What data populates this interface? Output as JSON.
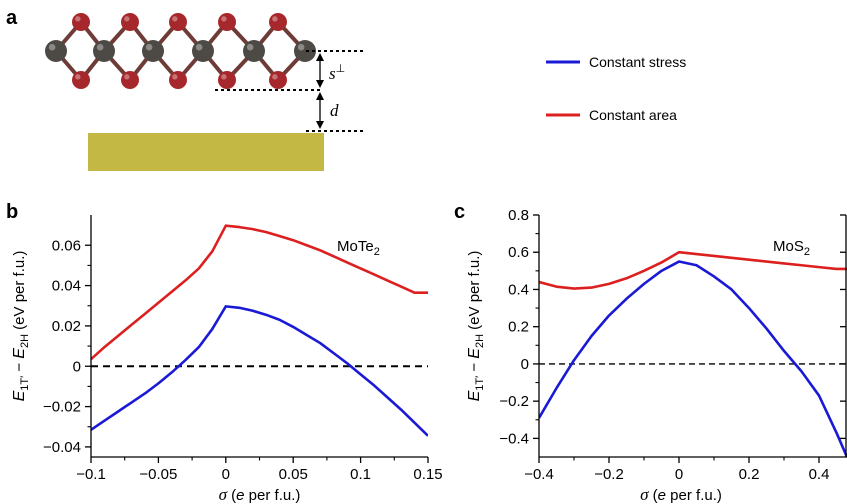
{
  "panel_a": {
    "letter": "a",
    "label_s": "s",
    "label_s_sub": "⊥",
    "label_d": "d",
    "colors": {
      "substrate": "#c2b843",
      "mo_atom": "#4d4a45",
      "chalcogen_atom": "#a7282c",
      "bond": "#6e3b37"
    }
  },
  "legend": [
    {
      "name": "Constant stress",
      "color": "#1a1ad6"
    },
    {
      "name": "Constant area",
      "color": "#dc2020"
    }
  ],
  "chart_data": [
    {
      "type": "line",
      "panel": "b",
      "annotation": {
        "main": "MoTe",
        "sub": "2"
      },
      "xlabel": {
        "sym": "σ",
        "rest": " (",
        "e": "e",
        "tail": " per f.u.)"
      },
      "ylabel": {
        "e1": "E",
        "sub1": "1T′",
        "minus": " − ",
        "e2": "E",
        "sub2": "2H",
        "tail": " (eV per f.u.)"
      },
      "xlim": [
        -0.1,
        0.15
      ],
      "ylim": [
        -0.045,
        0.075
      ],
      "xticks": [
        -0.1,
        -0.05,
        0,
        0.05,
        0.1,
        0.15
      ],
      "xtick_labels": [
        "−0.1",
        "−0.05",
        "0",
        "0.05",
        "0.1",
        "0.15"
      ],
      "yticks": [
        -0.04,
        -0.02,
        0,
        0.02,
        0.04,
        0.06
      ],
      "ytick_labels": [
        "−0.04",
        "−0.02",
        "0",
        "0.02",
        "0.04",
        "0.06"
      ],
      "zero_line": 0,
      "series": [
        {
          "name": "Constant stress",
          "color": "#1a1ad6",
          "x": [
            -0.1,
            -0.09,
            -0.08,
            -0.07,
            -0.06,
            -0.05,
            -0.04,
            -0.03,
            -0.02,
            -0.01,
            0,
            0.01,
            0.02,
            0.03,
            0.04,
            0.05,
            0.06,
            0.07,
            0.08,
            0.09,
            0.1,
            0.11,
            0.12,
            0.13,
            0.14,
            0.15
          ],
          "y": [
            -0.0315,
            -0.027,
            -0.0225,
            -0.018,
            -0.0135,
            -0.0085,
            -0.003,
            0.003,
            0.0095,
            0.0185,
            0.0297,
            0.029,
            0.0275,
            0.0255,
            0.023,
            0.0195,
            0.0155,
            0.0115,
            0.0065,
            0.0015,
            -0.004,
            -0.0095,
            -0.0155,
            -0.0215,
            -0.028,
            -0.0345
          ]
        },
        {
          "name": "Constant area",
          "color": "#dc2020",
          "x": [
            -0.1,
            -0.09,
            -0.08,
            -0.07,
            -0.06,
            -0.05,
            -0.04,
            -0.03,
            -0.02,
            -0.01,
            0,
            0.01,
            0.02,
            0.03,
            0.04,
            0.05,
            0.06,
            0.07,
            0.08,
            0.09,
            0.1,
            0.11,
            0.12,
            0.13,
            0.14,
            0.15
          ],
          "y": [
            0.0035,
            0.0095,
            0.015,
            0.0205,
            0.026,
            0.0315,
            0.037,
            0.0425,
            0.0485,
            0.057,
            0.0697,
            0.069,
            0.068,
            0.0665,
            0.0645,
            0.0625,
            0.06,
            0.0575,
            0.0545,
            0.0515,
            0.0485,
            0.0455,
            0.0425,
            0.0395,
            0.0365,
            0.0365
          ]
        }
      ]
    },
    {
      "type": "line",
      "panel": "c",
      "annotation": {
        "main": "MoS",
        "sub": "2"
      },
      "xlabel": {
        "sym": "σ",
        "rest": " (",
        "e": "e",
        "tail": " per f.u.)"
      },
      "ylabel": {
        "e1": "E",
        "sub1": "1T′",
        "minus": " − ",
        "e2": "E",
        "sub2": "2H",
        "tail": " (eV per f.u.)"
      },
      "xlim": [
        -0.4,
        0.48
      ],
      "ylim": [
        -0.5,
        0.8
      ],
      "xticks": [
        -0.4,
        -0.2,
        0,
        0.2,
        0.4
      ],
      "xtick_labels": [
        "−0.4",
        "−0.2",
        "0",
        "0.2",
        "0.4"
      ],
      "yticks": [
        -0.4,
        -0.2,
        0,
        0.2,
        0.4,
        0.6,
        0.8
      ],
      "ytick_labels": [
        "−0.4",
        "−0.2",
        "0",
        "0.2",
        "0.4",
        "0.6",
        "0.8"
      ],
      "zero_line": 0,
      "series": [
        {
          "name": "Constant stress",
          "color": "#1a1ad6",
          "x": [
            -0.4,
            -0.35,
            -0.3,
            -0.25,
            -0.2,
            -0.15,
            -0.1,
            -0.05,
            0,
            0.05,
            0.1,
            0.15,
            0.2,
            0.25,
            0.3,
            0.35,
            0.4,
            0.45,
            0.48
          ],
          "y": [
            -0.29,
            -0.13,
            0.02,
            0.15,
            0.26,
            0.35,
            0.43,
            0.5,
            0.55,
            0.53,
            0.47,
            0.4,
            0.3,
            0.19,
            0.07,
            -0.04,
            -0.17,
            -0.37,
            -0.5
          ]
        },
        {
          "name": "Constant area",
          "color": "#dc2020",
          "x": [
            -0.4,
            -0.35,
            -0.3,
            -0.25,
            -0.2,
            -0.15,
            -0.1,
            -0.05,
            0,
            0.05,
            0.1,
            0.15,
            0.2,
            0.25,
            0.3,
            0.35,
            0.4,
            0.45,
            0.48
          ],
          "y": [
            0.44,
            0.415,
            0.405,
            0.41,
            0.43,
            0.46,
            0.5,
            0.545,
            0.6,
            0.59,
            0.58,
            0.57,
            0.56,
            0.55,
            0.54,
            0.53,
            0.52,
            0.51,
            0.51
          ]
        }
      ]
    }
  ]
}
